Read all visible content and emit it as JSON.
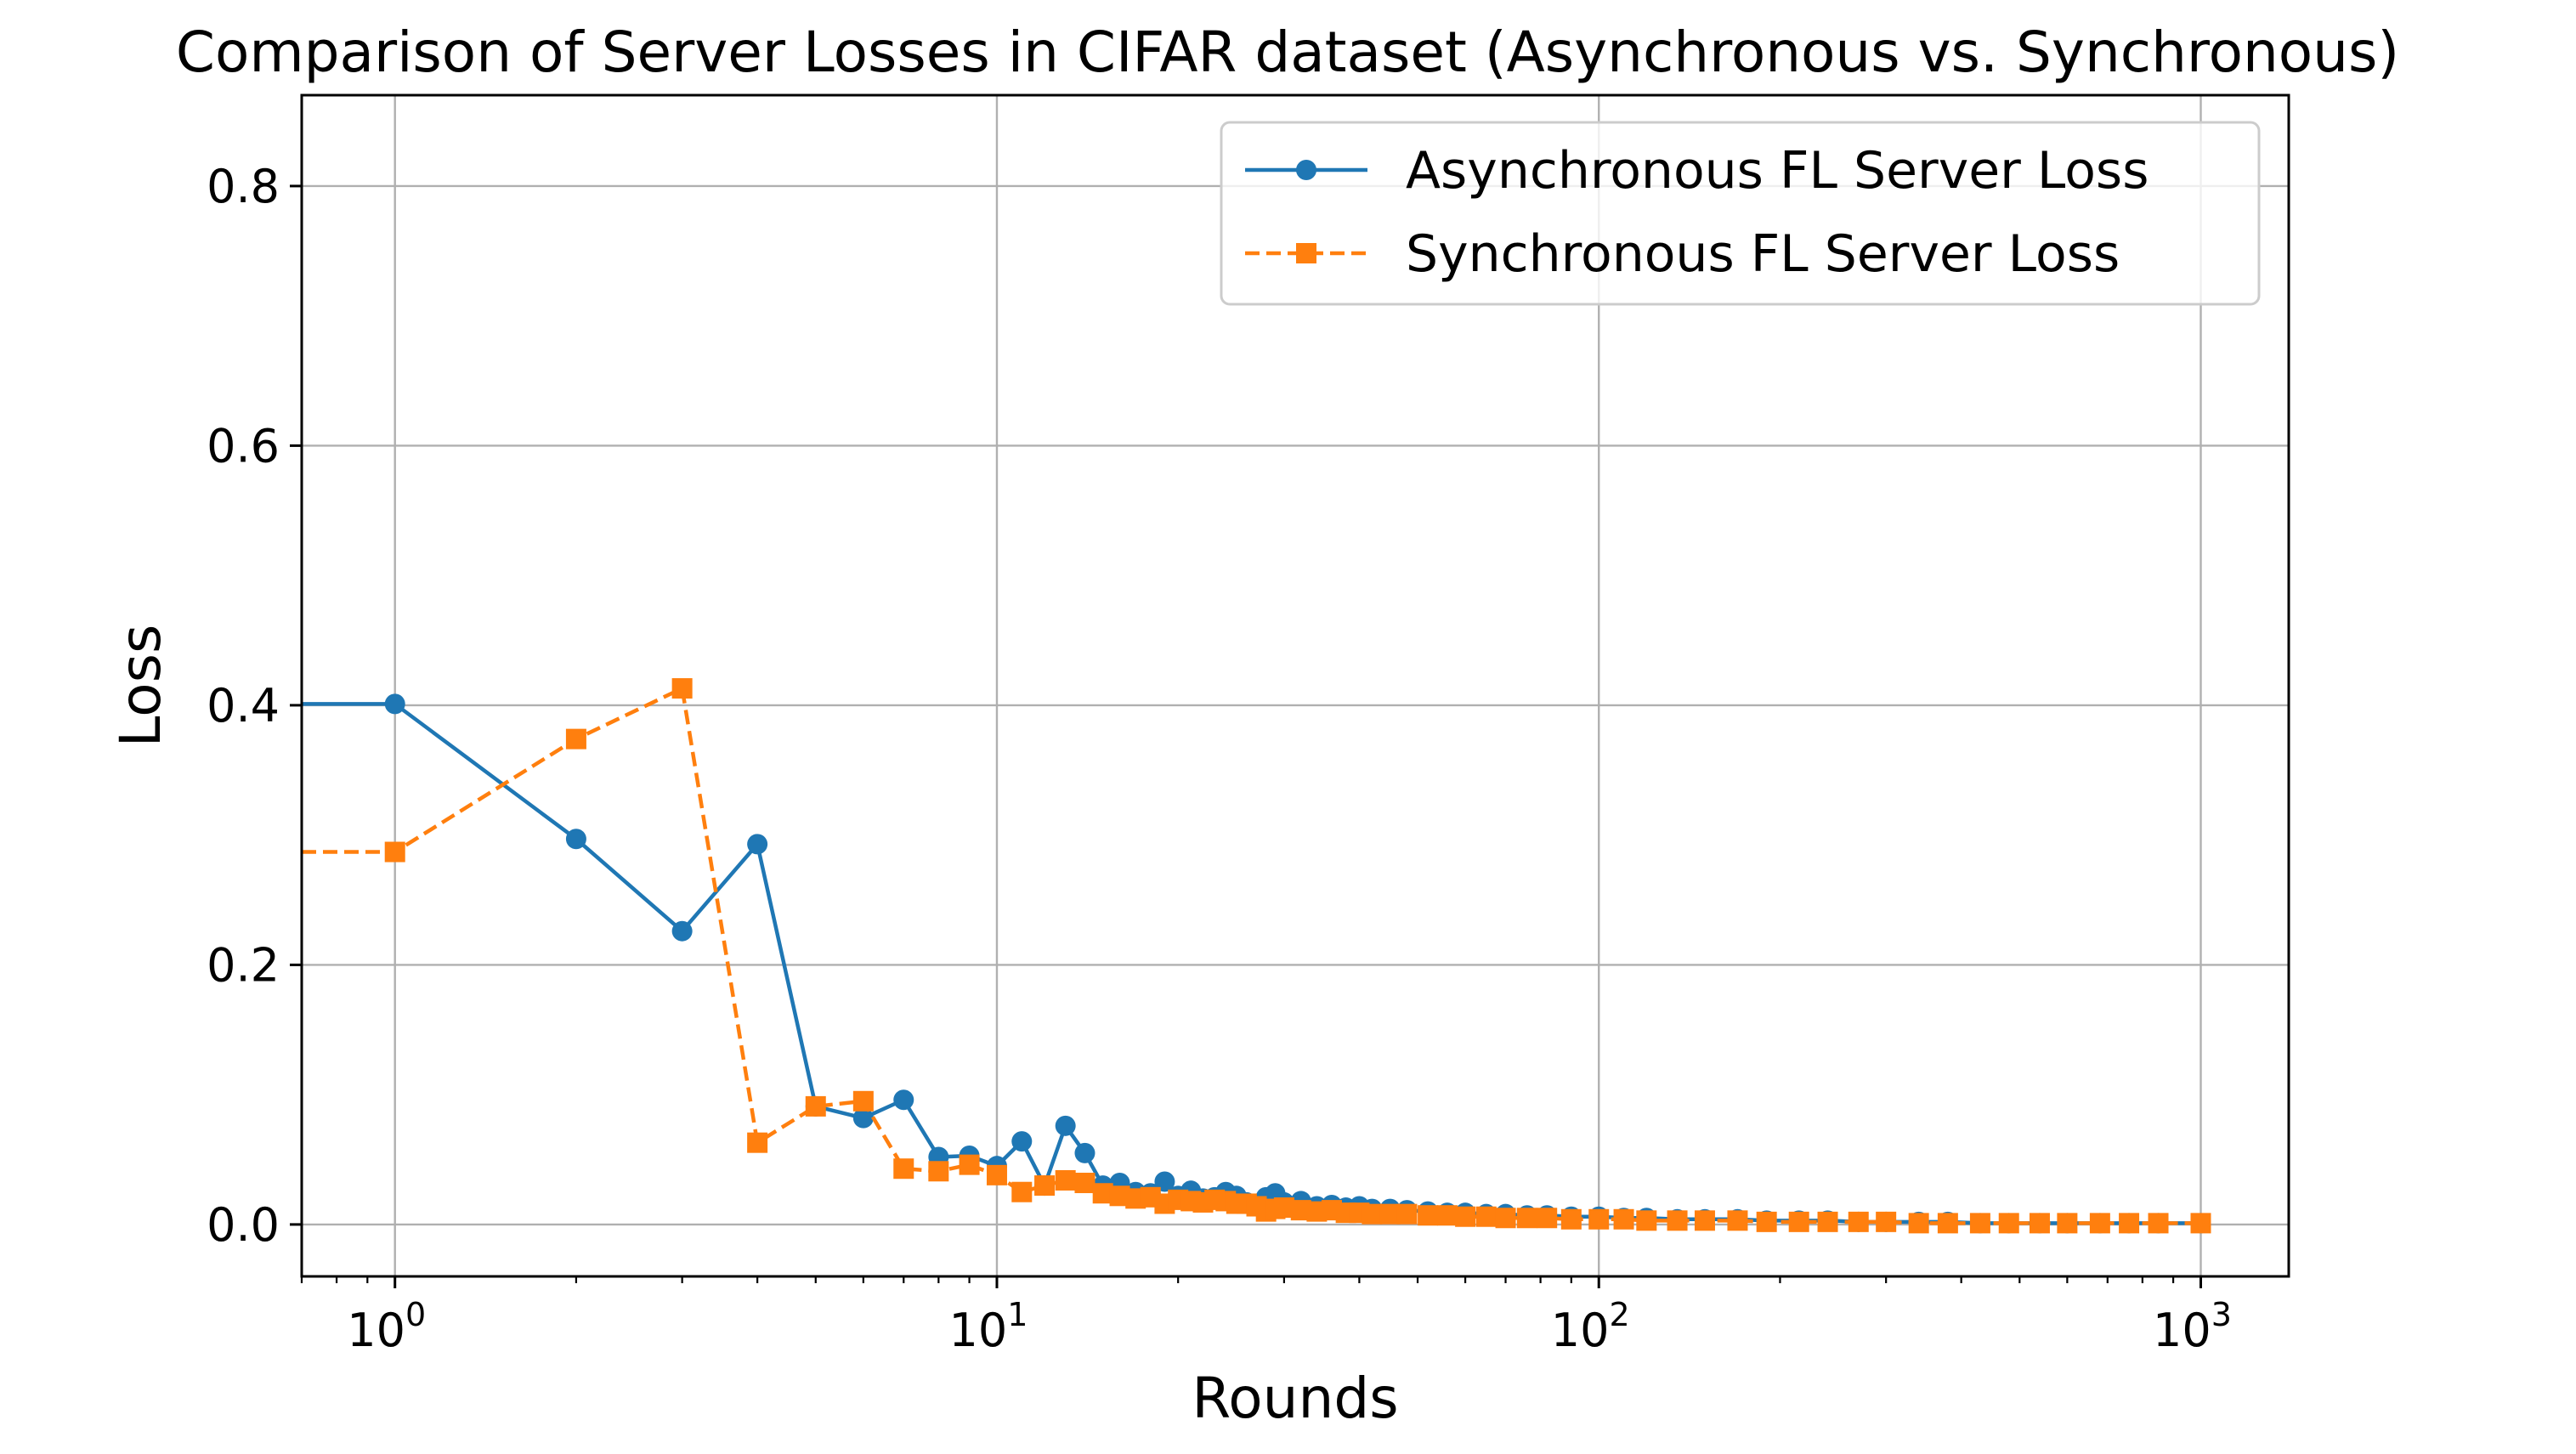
{
  "chart_data": {
    "type": "line",
    "title": "Comparison of Server Losses in CIFAR dataset (Asynchronous vs. Synchronous)",
    "xlabel": "Rounds",
    "ylabel": "Loss",
    "x_scale": "log",
    "xlim": [
      0.7,
      1400
    ],
    "ylim": [
      -0.04,
      0.87
    ],
    "x_ticks": [
      {
        "value": 1,
        "base": "10",
        "exp": "0"
      },
      {
        "value": 10,
        "base": "10",
        "exp": "1"
      },
      {
        "value": 100,
        "base": "10",
        "exp": "2"
      },
      {
        "value": 1000,
        "base": "10",
        "exp": "3"
      }
    ],
    "y_ticks": [
      {
        "value": 0.0,
        "label": "0.0"
      },
      {
        "value": 0.2,
        "label": "0.2"
      },
      {
        "value": 0.4,
        "label": "0.4"
      },
      {
        "value": 0.6,
        "label": "0.6"
      },
      {
        "value": 0.8,
        "label": "0.8"
      }
    ],
    "grid": true,
    "legend_position": "top-right",
    "series": [
      {
        "name": "Asynchronous FL Server Loss",
        "color": "#1f77b4",
        "marker": "circle",
        "linestyle": "solid",
        "points": [
          [
            0,
            0.401
          ],
          [
            1,
            0.401
          ],
          [
            2,
            0.297
          ],
          [
            3,
            0.226
          ],
          [
            4,
            0.293
          ],
          [
            5,
            0.091
          ],
          [
            6,
            0.082
          ],
          [
            7,
            0.096
          ],
          [
            8,
            0.052
          ],
          [
            9,
            0.053
          ],
          [
            10,
            0.045
          ],
          [
            11,
            0.064
          ],
          [
            12,
            0.03
          ],
          [
            13,
            0.076
          ],
          [
            14,
            0.055
          ],
          [
            15,
            0.03
          ],
          [
            16,
            0.032
          ],
          [
            17,
            0.025
          ],
          [
            18,
            0.024
          ],
          [
            19,
            0.033
          ],
          [
            20,
            0.022
          ],
          [
            21,
            0.026
          ],
          [
            22,
            0.02
          ],
          [
            23,
            0.021
          ],
          [
            24,
            0.025
          ],
          [
            25,
            0.022
          ],
          [
            26,
            0.017
          ],
          [
            27,
            0.016
          ],
          [
            28,
            0.021
          ],
          [
            29,
            0.024
          ],
          [
            30,
            0.017
          ],
          [
            32,
            0.018
          ],
          [
            34,
            0.014
          ],
          [
            36,
            0.015
          ],
          [
            38,
            0.013
          ],
          [
            40,
            0.014
          ],
          [
            42,
            0.012
          ],
          [
            45,
            0.012
          ],
          [
            48,
            0.011
          ],
          [
            52,
            0.01
          ],
          [
            56,
            0.009
          ],
          [
            60,
            0.009
          ],
          [
            65,
            0.008
          ],
          [
            70,
            0.008
          ],
          [
            76,
            0.007
          ],
          [
            82,
            0.007
          ],
          [
            90,
            0.006
          ],
          [
            100,
            0.006
          ],
          [
            110,
            0.005
          ],
          [
            120,
            0.005
          ],
          [
            135,
            0.004
          ],
          [
            150,
            0.004
          ],
          [
            170,
            0.004
          ],
          [
            190,
            0.003
          ],
          [
            215,
            0.003
          ],
          [
            240,
            0.003
          ],
          [
            270,
            0.002
          ],
          [
            300,
            0.002
          ],
          [
            340,
            0.002
          ],
          [
            380,
            0.002
          ],
          [
            430,
            0.001
          ],
          [
            480,
            0.001
          ],
          [
            540,
            0.001
          ],
          [
            600,
            0.001
          ],
          [
            680,
            0.001
          ],
          [
            760,
            0.001
          ],
          [
            850,
            0.001
          ],
          [
            1000,
            0.001
          ]
        ]
      },
      {
        "name": "Synchronous FL Server Loss",
        "color": "#ff7f0e",
        "marker": "square",
        "linestyle": "dashed",
        "points": [
          [
            0,
            0.287
          ],
          [
            1,
            0.287
          ],
          [
            2,
            0.374
          ],
          [
            3,
            0.413
          ],
          [
            4,
            0.063
          ],
          [
            5,
            0.091
          ],
          [
            6,
            0.095
          ],
          [
            7,
            0.043
          ],
          [
            8,
            0.041
          ],
          [
            9,
            0.046
          ],
          [
            10,
            0.038
          ],
          [
            11,
            0.025
          ],
          [
            12,
            0.03
          ],
          [
            13,
            0.034
          ],
          [
            14,
            0.032
          ],
          [
            15,
            0.024
          ],
          [
            16,
            0.022
          ],
          [
            17,
            0.02
          ],
          [
            18,
            0.021
          ],
          [
            19,
            0.016
          ],
          [
            20,
            0.019
          ],
          [
            21,
            0.018
          ],
          [
            22,
            0.017
          ],
          [
            23,
            0.019
          ],
          [
            24,
            0.018
          ],
          [
            25,
            0.016
          ],
          [
            26,
            0.016
          ],
          [
            27,
            0.014
          ],
          [
            28,
            0.01
          ],
          [
            29,
            0.012
          ],
          [
            30,
            0.013
          ],
          [
            32,
            0.011
          ],
          [
            34,
            0.01
          ],
          [
            36,
            0.011
          ],
          [
            38,
            0.009
          ],
          [
            40,
            0.009
          ],
          [
            42,
            0.008
          ],
          [
            45,
            0.008
          ],
          [
            48,
            0.008
          ],
          [
            52,
            0.007
          ],
          [
            56,
            0.007
          ],
          [
            60,
            0.006
          ],
          [
            65,
            0.006
          ],
          [
            70,
            0.005
          ],
          [
            76,
            0.005
          ],
          [
            82,
            0.005
          ],
          [
            90,
            0.004
          ],
          [
            100,
            0.004
          ],
          [
            110,
            0.004
          ],
          [
            120,
            0.003
          ],
          [
            135,
            0.003
          ],
          [
            150,
            0.003
          ],
          [
            170,
            0.003
          ],
          [
            190,
            0.002
          ],
          [
            215,
            0.002
          ],
          [
            240,
            0.002
          ],
          [
            270,
            0.002
          ],
          [
            300,
            0.002
          ],
          [
            340,
            0.001
          ],
          [
            380,
            0.001
          ],
          [
            430,
            0.001
          ],
          [
            480,
            0.001
          ],
          [
            540,
            0.001
          ],
          [
            600,
            0.001
          ],
          [
            680,
            0.001
          ],
          [
            760,
            0.001
          ],
          [
            850,
            0.001
          ],
          [
            1000,
            0.001
          ]
        ]
      }
    ]
  }
}
